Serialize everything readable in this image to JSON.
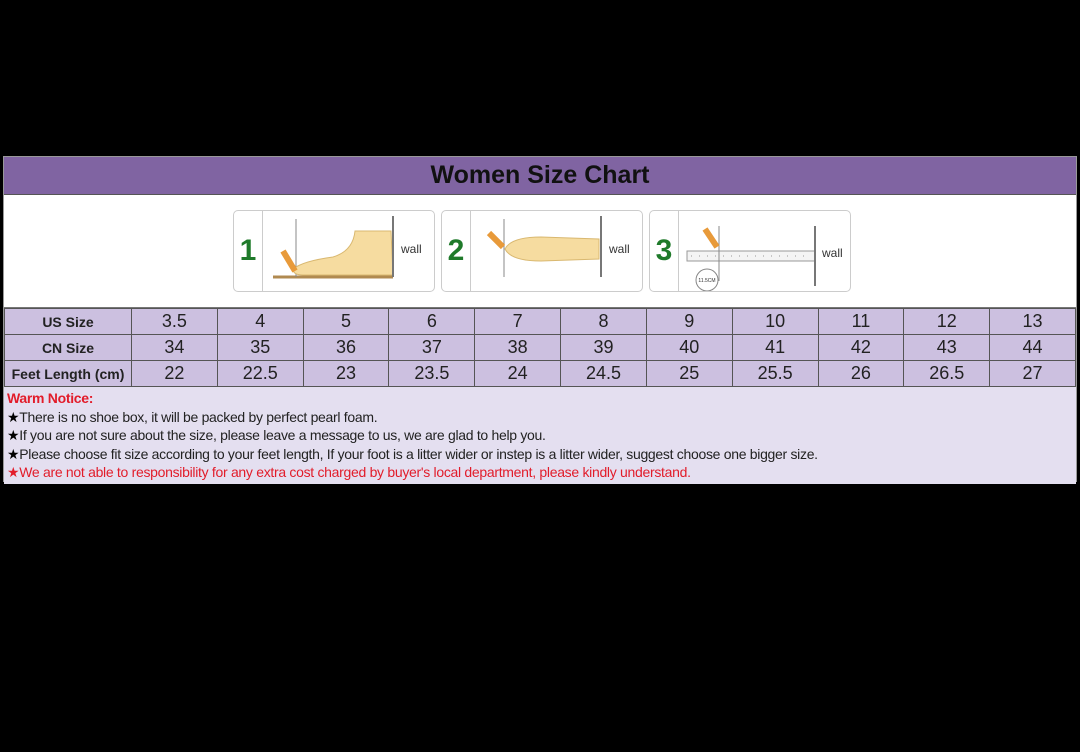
{
  "title": "Women Size Chart",
  "illustrations": [
    {
      "step": "1",
      "wall_label": "wall"
    },
    {
      "step": "2",
      "wall_label": "wall"
    },
    {
      "step": "3",
      "wall_label": "wall",
      "measure_label": "11.5CM"
    }
  ],
  "table": {
    "rows": [
      {
        "label": "US Size",
        "values": [
          "3.5",
          "4",
          "5",
          "6",
          "7",
          "8",
          "9",
          "10",
          "11",
          "12",
          "13"
        ]
      },
      {
        "label": "CN Size",
        "values": [
          "34",
          "35",
          "36",
          "37",
          "38",
          "39",
          "40",
          "41",
          "42",
          "43",
          "44"
        ]
      },
      {
        "label": "Feet Length (cm)",
        "values": [
          "22",
          "22.5",
          "23",
          "23.5",
          "24",
          "24.5",
          "25",
          "25.5",
          "26",
          "26.5",
          "27"
        ]
      }
    ]
  },
  "notice": {
    "heading": "Warm Notice:",
    "star": "★",
    "items": [
      "There is no shoe box, it will be packed by perfect pearl foam.",
      "If you are not sure about the size, please leave a message to us, we are glad to help you.",
      "Please choose fit size according to your feet length, If your foot is a litter wider or instep is a litter wider, suggest choose one bigger size.",
      "We are not able to responsibility for any extra cost charged by buyer's local department, please kindly understand."
    ]
  },
  "colors": {
    "header": "#8064a2",
    "cell": "#ccc0e0",
    "notice_bg": "#e4dff0",
    "warn": "#e21c2a",
    "step_number": "#1f7a2a"
  }
}
